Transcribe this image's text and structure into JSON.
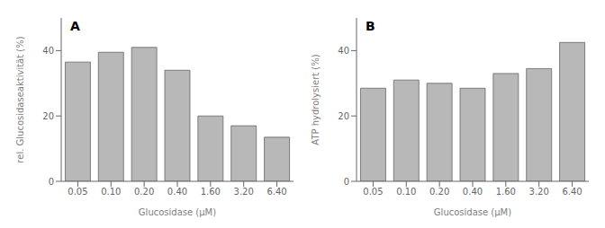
{
  "chart_data": [
    {
      "type": "bar",
      "annotations": [
        "A"
      ],
      "categories": [
        "0.05",
        "0.10",
        "0.20",
        "0.40",
        "1.60",
        "3.20",
        "6.40"
      ],
      "values": [
        36.5,
        39.5,
        41.0,
        34.0,
        20.0,
        17.0,
        13.5
      ],
      "x_label": "Glucosidase (µM)",
      "y_label": "rel. Glucosidaseaktivität (%)",
      "color": "#b8b8b8",
      "ylim": [
        0,
        50
      ],
      "yticks": [
        0,
        20,
        40
      ],
      "grid": false
    },
    {
      "type": "bar",
      "annotations": [
        "B"
      ],
      "categories": [
        "0.05",
        "0.10",
        "0.20",
        "0.40",
        "1.60",
        "3.20",
        "6.40"
      ],
      "values": [
        28.5,
        31.0,
        30.0,
        28.5,
        33.0,
        34.5,
        42.5
      ],
      "x_label": "Glucosidase (µM)",
      "y_label": "ATP hydrolysiert (%)",
      "color": "#b8b8b8",
      "ylim": [
        0,
        50
      ],
      "yticks": [
        0,
        20,
        40
      ],
      "grid": false
    }
  ]
}
